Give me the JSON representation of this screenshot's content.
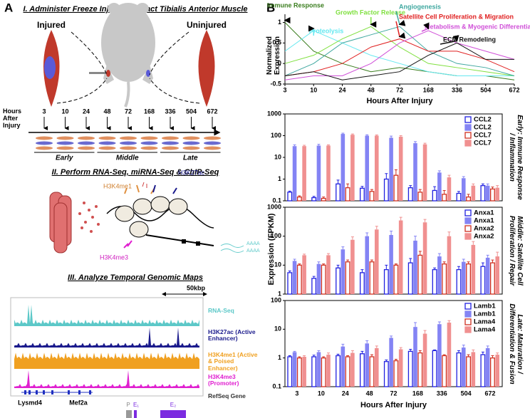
{
  "panel_a": {
    "label": "A",
    "section1_title": "I. Administer Freeze Injury & Extract Tibialis Anterior Muscle",
    "injured": "Injured",
    "uninjured": "Uninjured",
    "timeline": {
      "label": "Hours After Injury",
      "hours": [
        "3",
        "10",
        "24",
        "48",
        "72",
        "168",
        "336",
        "504",
        "672"
      ],
      "phases": [
        "Early",
        "Middle",
        "Late"
      ]
    },
    "section2_title": "II. Perform RNA-Seq, miRNA-Seq & ChIP-Seq",
    "histone_marks": [
      "H3K4me1",
      "H3K27ac",
      "H3K4me3"
    ],
    "polya": [
      "AAAA",
      "AAAA"
    ],
    "section3_title": "III. Analyze Temporal Genomic Maps",
    "scale": "50kbp",
    "tracks": [
      {
        "label": "RNA-Seq",
        "color": "#5cc8c8"
      },
      {
        "label": "H3K27ac (Active Enhancer)",
        "color": "#1a1a8c"
      },
      {
        "label": "H3K4me1 (Active & Poised Enhancer)",
        "color": "#f0a020"
      },
      {
        "label": "H3K4me3 (Promoter)",
        "color": "#e020d0"
      },
      {
        "label": "RefSeq Gene",
        "color": "#333333"
      }
    ],
    "genes": [
      "Lysmd4",
      "Mef2a"
    ],
    "elements": [
      "P",
      "E₁",
      "E₂"
    ]
  },
  "panel_b_label": "B",
  "chart_data": [
    {
      "type": "line",
      "ylabel": "Normalized Expression",
      "xlabel": "Hours After Injury",
      "categories": [
        "3",
        "10",
        "24",
        "48",
        "72",
        "168",
        "336",
        "504",
        "672"
      ],
      "ylim": [
        -0.5,
        1.2
      ],
      "yticks": [
        -0.5,
        0,
        0.5,
        1
      ],
      "series": [
        {
          "name": "Immune Response",
          "color": "#3a7d1e",
          "values": [
            1,
            0.3,
            0,
            -0.2,
            -0.1,
            -0.2,
            -0.3,
            -0.3,
            -0.4
          ]
        },
        {
          "name": "Proteolysis",
          "color": "#66e8f0",
          "values": [
            0.3,
            0.8,
            0.5,
            0.2,
            0,
            -0.2,
            -0.3,
            -0.3,
            -0.3
          ]
        },
        {
          "name": "Growth Factor Release",
          "color": "#80e040",
          "values": [
            0,
            0.2,
            0.6,
            0.9,
            0.4,
            0,
            -0.1,
            -0.2,
            -0.3
          ]
        },
        {
          "name": "Angiogenesis",
          "color": "#40a8a0",
          "values": [
            -0.3,
            0,
            0.5,
            0.7,
            0.9,
            0.3,
            0,
            -0.1,
            -0.3
          ]
        },
        {
          "name": "Satellite Cell Proliferation & Migration",
          "color": "#e02020",
          "values": [
            -0.3,
            -0.2,
            0,
            0.4,
            0.6,
            0.3,
            0.3,
            0.1,
            -0.2
          ]
        },
        {
          "name": "Metabolism & Myogenic Differentiation",
          "color": "#d050d8",
          "values": [
            -0.4,
            -0.3,
            -0.3,
            0,
            0.5,
            0.8,
            0.5,
            0.3,
            0.1
          ]
        },
        {
          "name": "ECM Remodeling",
          "color": "#111111",
          "values": [
            -0.3,
            -0.2,
            -0.4,
            -0.3,
            -0.2,
            0.2,
            0.5,
            0.1,
            0.1
          ]
        }
      ]
    },
    {
      "type": "bar",
      "log_scale": true,
      "ylabel": "Expression (FPKM)",
      "xlabel": "Hours After Injury",
      "categories": [
        "3",
        "10",
        "24",
        "48",
        "72",
        "168",
        "336",
        "504",
        "672"
      ],
      "panels": [
        {
          "side_label": "Early: Immune Response / Inflammation",
          "ylim": [
            0.1,
            1000
          ],
          "yticks": [
            0.1,
            1,
            10,
            100,
            1000
          ],
          "series": [
            {
              "name": "CCL2",
              "style": "outline",
              "color": "#2020e0",
              "values": [
                0.25,
                0.14,
                0.6,
                0.38,
                1.0,
                0.4,
                0.3,
                0.22,
                0.5
              ],
              "errors": [
                0.03,
                0.02,
                0.3,
                0.08,
                0.8,
                0.1,
                0.15,
                0.05,
                0.1
              ]
            },
            {
              "name": "CCL2",
              "style": "filled",
              "color": "#8484f4",
              "values": [
                33,
                35,
                120,
                100,
                80,
                45,
                2,
                1.1,
                0.5
              ],
              "errors": [
                5,
                5,
                10,
                10,
                15,
                8,
                0.4,
                0.2,
                0.1
              ]
            },
            {
              "name": "CCL7",
              "style": "outline",
              "color": "#d03020",
              "values": [
                0.15,
                0.13,
                0.4,
                0.27,
                1.5,
                0.25,
                0.2,
                0.15,
                0.35
              ],
              "errors": [
                0.02,
                0.02,
                0.2,
                0.06,
                1.2,
                0.08,
                0.1,
                0.05,
                0.08
              ]
            },
            {
              "name": "CCL7",
              "style": "filled",
              "color": "#f09090",
              "values": [
                33,
                35,
                110,
                100,
                90,
                40,
                1.2,
                0.5,
                0.4
              ],
              "errors": [
                3,
                3,
                10,
                8,
                10,
                5,
                0.3,
                0.1,
                0.1
              ]
            }
          ]
        },
        {
          "side_label": "Middle: Satellite Cell Proliferation / Repair",
          "ylim": [
            1,
            1000
          ],
          "yticks": [
            1,
            10,
            100,
            1000
          ],
          "series": [
            {
              "name": "Anxa1",
              "style": "outline",
              "color": "#2020e0",
              "values": [
                5.5,
                3.5,
                8,
                5.5,
                7,
                12,
                7,
                7,
                9
              ],
              "errors": [
                0.8,
                0.6,
                2,
                1.5,
                3,
                5,
                1,
                2,
                3
              ]
            },
            {
              "name": "Anxa1",
              "style": "filled",
              "color": "#8484f4",
              "values": [
                14,
                11,
                35,
                100,
                110,
                70,
                20,
                13,
                18
              ],
              "errors": [
                2,
                2,
                8,
                30,
                40,
                30,
                5,
                3,
                4
              ]
            },
            {
              "name": "Anxa2",
              "style": "outline",
              "color": "#d03020",
              "values": [
                10,
                10,
                13,
                13,
                10,
                22,
                11,
                11,
                12
              ],
              "errors": [
                1,
                1,
                2,
                2,
                1,
                8,
                2,
                2,
                3
              ]
            },
            {
              "name": "Anxa2",
              "style": "filled",
              "color": "#f09090",
              "values": [
                22,
                22,
                75,
                170,
                350,
                300,
                100,
                50,
                20
              ],
              "errors": [
                2,
                3,
                20,
                50,
                100,
                80,
                40,
                15,
                8
              ]
            }
          ]
        },
        {
          "side_label": "Late: Maturation / Differentiation & Fusion",
          "ylim": [
            0.1,
            100
          ],
          "yticks": [
            0.1,
            1,
            10,
            100
          ],
          "series": [
            {
              "name": "Lamb1",
              "style": "outline",
              "color": "#2020e0",
              "values": [
                1.1,
                1.1,
                1.2,
                1.4,
                0.75,
                1.7,
                1.8,
                1.5,
                1.3
              ],
              "errors": [
                0.1,
                0.15,
                0.15,
                0.3,
                0.1,
                0.3,
                0.1,
                0.3,
                0.3
              ]
            },
            {
              "name": "Lamb1",
              "style": "filled",
              "color": "#8484f4",
              "values": [
                1.6,
                1.6,
                2.5,
                3.2,
                5,
                12,
                15,
                2.3,
                2.2
              ],
              "errors": [
                0.1,
                0.2,
                0.5,
                0.8,
                0.8,
                5,
                3,
                0.5,
                0.4
              ]
            },
            {
              "name": "Lama4",
              "style": "outline",
              "color": "#d03020",
              "values": [
                1.0,
                1.0,
                1.1,
                1.1,
                0.8,
                1.5,
                1.2,
                1.1,
                1.0
              ],
              "errors": [
                0.1,
                0.1,
                0.1,
                0.2,
                0.1,
                0.3,
                0.1,
                0.2,
                0.2
              ]
            },
            {
              "name": "Lama4",
              "style": "filled",
              "color": "#f09090",
              "values": [
                1.1,
                1.3,
                1.5,
                2.2,
                2.0,
                7,
                17,
                1.6,
                1.3
              ],
              "errors": [
                0.1,
                0.2,
                0.3,
                0.4,
                0.3,
                2,
                3,
                0.3,
                0.2
              ]
            }
          ]
        }
      ]
    }
  ]
}
